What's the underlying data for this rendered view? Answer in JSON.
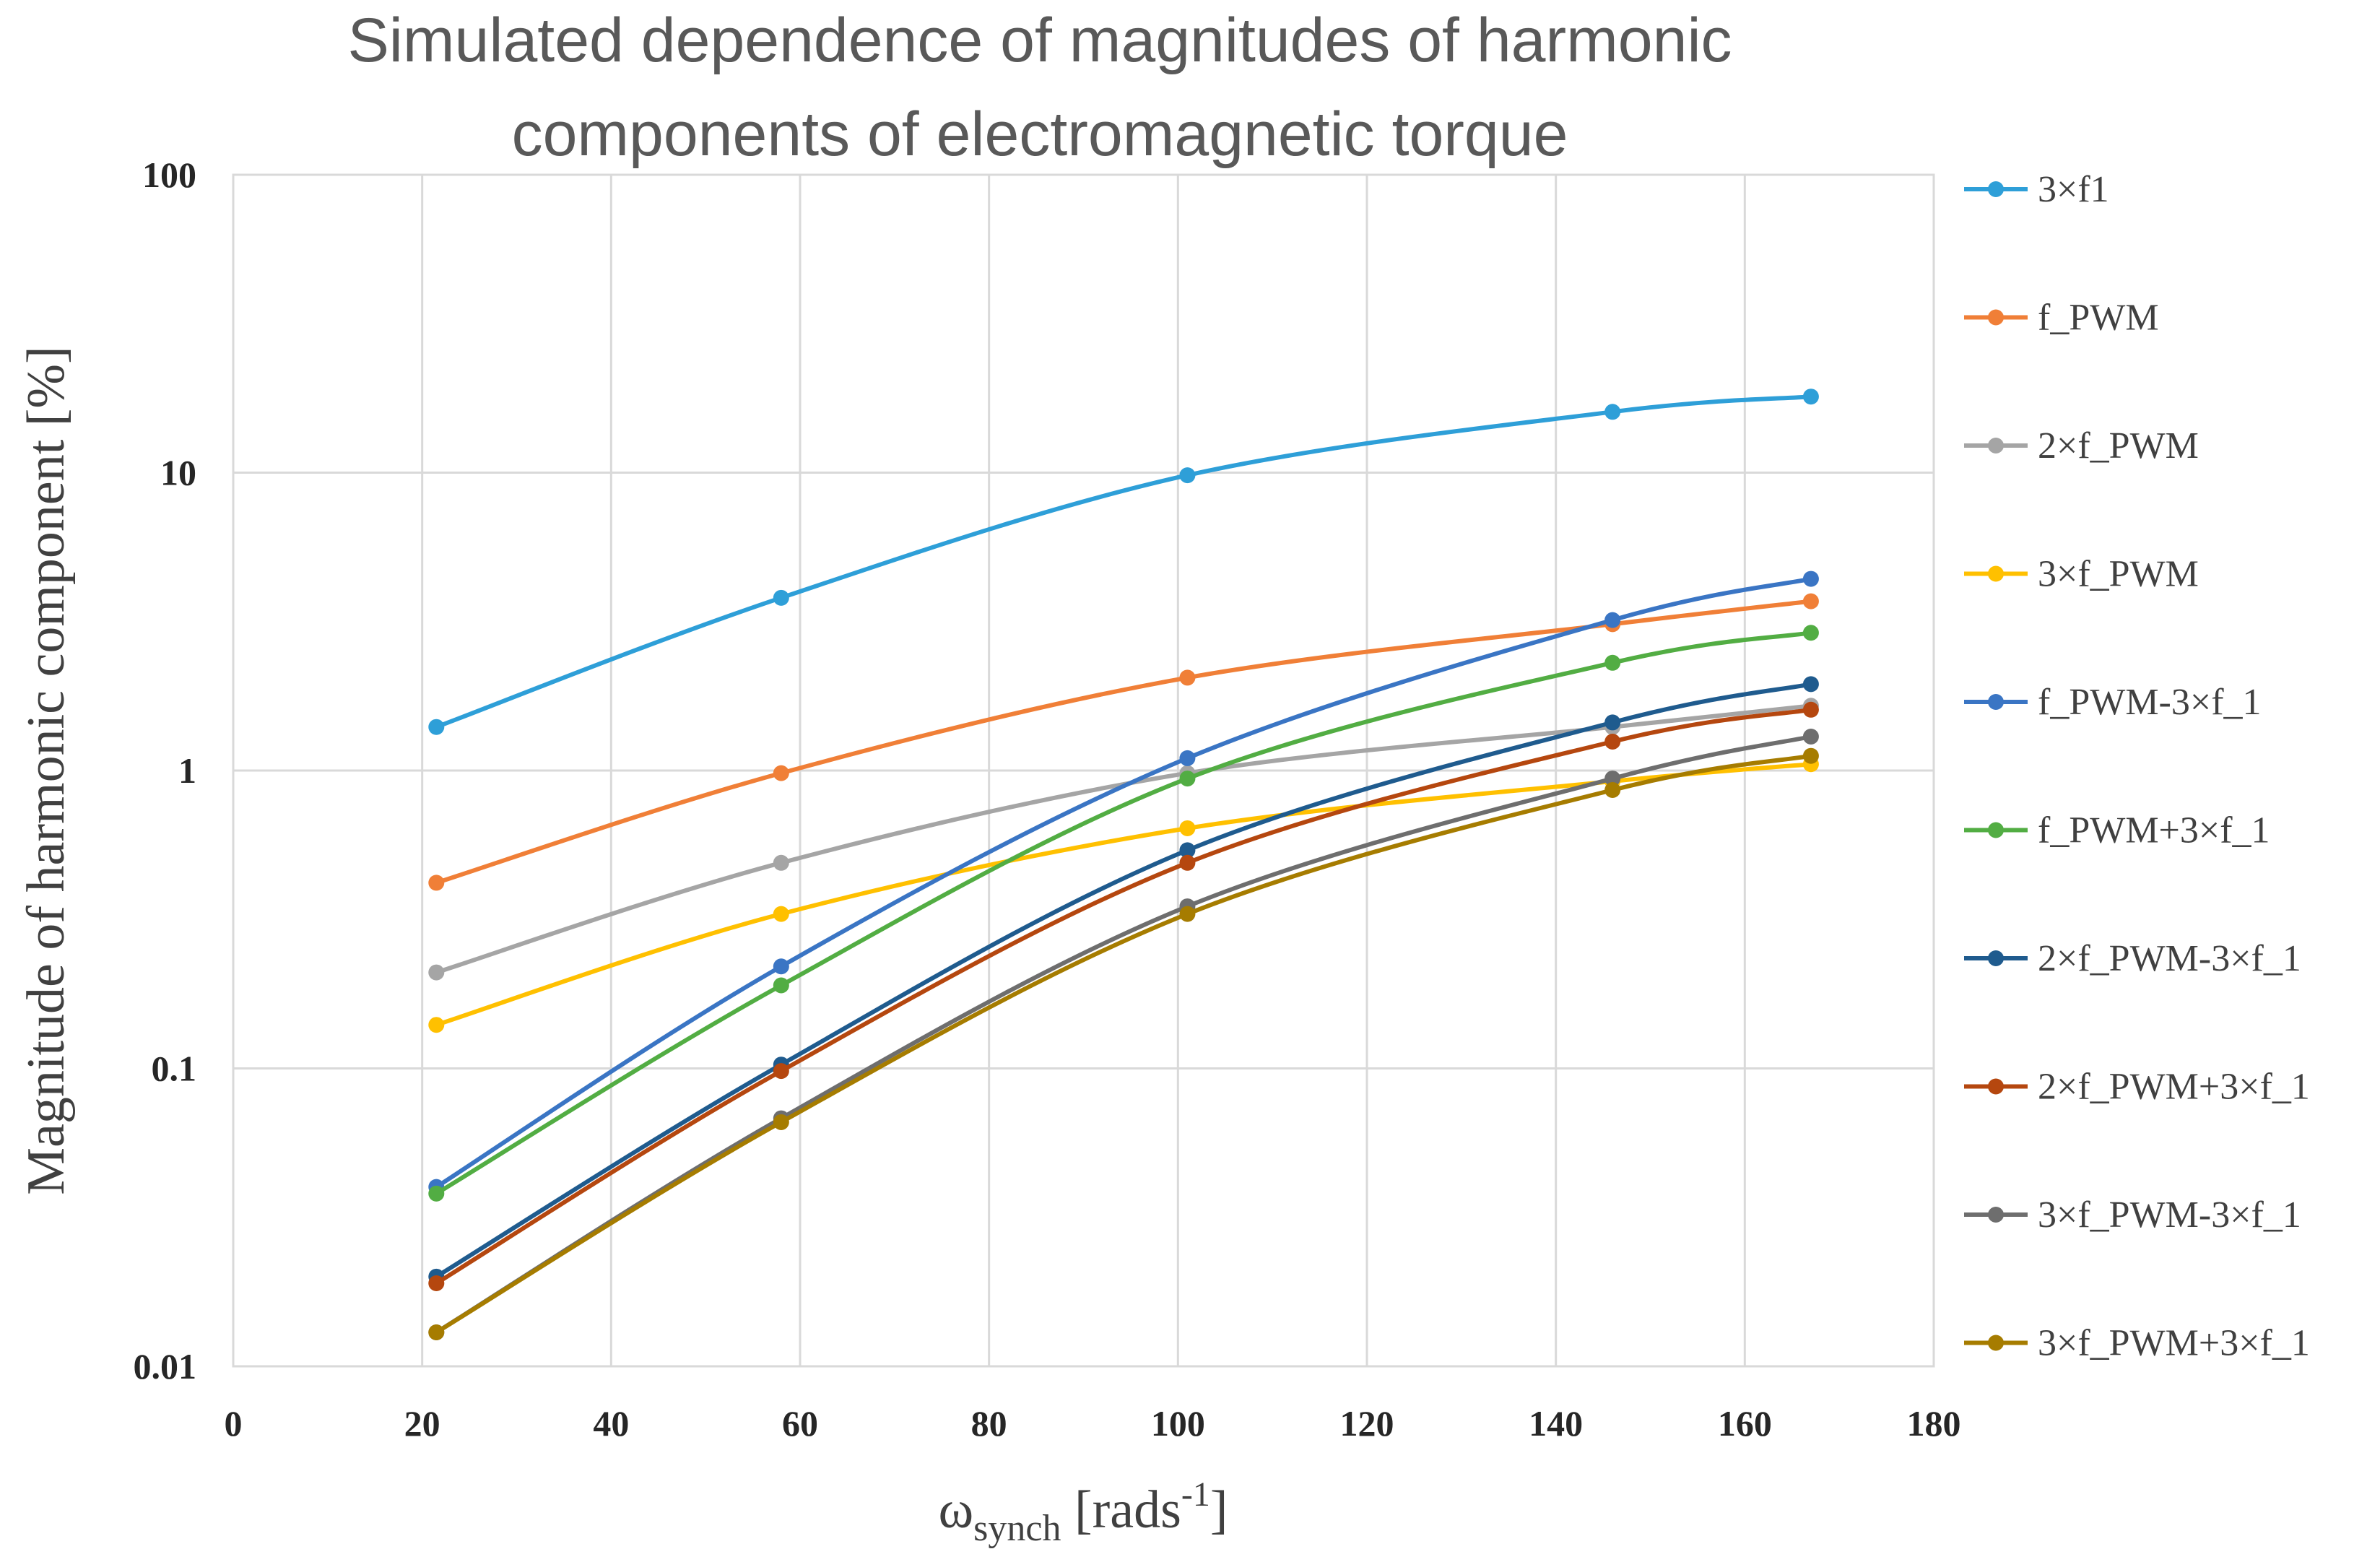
{
  "chart_data": {
    "type": "line",
    "title_lines": [
      "Simulated dependence of magnitudes of harmonic",
      "components of electromagnetic torque"
    ],
    "xlabel": "ω",
    "xlabel_sub": "synch",
    "xlabel_unit": " [rads",
    "xlabel_sup": "-1",
    "xlabel_close": "]",
    "ylabel": "Magnitude of harmonic component [%]",
    "xlim": [
      0,
      180
    ],
    "ylim": [
      0.01,
      100
    ],
    "yscale": "log",
    "x_ticks": [
      "0",
      "20",
      "40",
      "60",
      "80",
      "100",
      "120",
      "140",
      "160",
      "180"
    ],
    "y_ticks": [
      "0.01",
      "0.1",
      "1",
      "10",
      "100"
    ],
    "legend_position": "right",
    "x": [
      21.5,
      58,
      101,
      146,
      167
    ],
    "series": [
      {
        "name": "3×f1",
        "color": "#2e9fd8",
        "values": [
          1.4,
          3.8,
          9.8,
          16,
          18
        ]
      },
      {
        "name": "f_PWM",
        "color": "#f07f37",
        "values": [
          0.42,
          0.98,
          2.05,
          3.1,
          3.7
        ]
      },
      {
        "name": "2×f_PWM",
        "color": "#a5a5a5",
        "values": [
          0.21,
          0.49,
          0.98,
          1.4,
          1.65
        ]
      },
      {
        "name": "3×f_PWM",
        "color": "#ffc000",
        "values": [
          0.14,
          0.33,
          0.64,
          0.92,
          1.05
        ]
      },
      {
        "name": "f_PWM-3×f_1",
        "color": "#3a75c4",
        "values": [
          0.04,
          0.22,
          1.1,
          3.2,
          4.4
        ]
      },
      {
        "name": "f_PWM+3×f_1",
        "color": "#52ad43",
        "values": [
          0.038,
          0.19,
          0.94,
          2.3,
          2.9
        ]
      },
      {
        "name": "2×f_PWM-3×f_1",
        "color": "#1f5b8e",
        "values": [
          0.02,
          0.103,
          0.54,
          1.45,
          1.95
        ]
      },
      {
        "name": "2×f_PWM+3×f_1",
        "color": "#b5470f",
        "values": [
          0.019,
          0.098,
          0.49,
          1.25,
          1.6
        ]
      },
      {
        "name": "3×f_PWM-3×f_1",
        "color": "#6e6e6e",
        "values": [
          0.013,
          0.068,
          0.35,
          0.94,
          1.3
        ]
      },
      {
        "name": "3×f_PWM+3×f_1",
        "color": "#a67c00",
        "values": [
          0.013,
          0.066,
          0.33,
          0.86,
          1.12
        ]
      }
    ]
  }
}
